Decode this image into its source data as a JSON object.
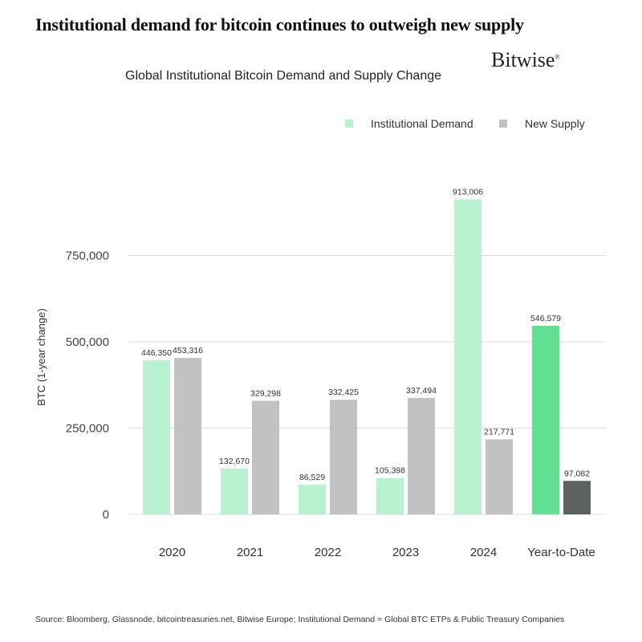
{
  "headline": "Institutional demand for bitcoin continues to outweigh new supply",
  "brand": "Bitwise",
  "brand_mark": "®",
  "source": "Source: Bloomberg, Glassnode, bitcointreasuries.net, Bitwise Europe; Institutional Demand = Global BTC ETPs & Public Treasury Companies",
  "colors": {
    "demand": "#b8f2d0",
    "demand_highlight": "#5fe092",
    "supply": "#c1c2c3",
    "supply_highlight": "#5e6162",
    "grid": "#dcdcdc"
  },
  "chart_data": {
    "type": "bar",
    "title": "Global Institutional Bitcoin Demand and Supply Change",
    "xlabel": "",
    "ylabel": "BTC (1-year change)",
    "ylim": [
      0,
      1000000
    ],
    "yticks": [
      0,
      250000,
      500000,
      750000
    ],
    "ytick_labels": [
      "0",
      "250,000",
      "500,000",
      "750,000"
    ],
    "grid": true,
    "legend_position": "top-right",
    "categories": [
      "2020",
      "2021",
      "2022",
      "2023",
      "2024",
      "Year-to-Date"
    ],
    "series": [
      {
        "name": "Institutional Demand",
        "values": [
          446350,
          132670,
          86529,
          105398,
          913006,
          546579
        ],
        "labels": [
          "446,350",
          "132,670",
          "86,529",
          "105,398",
          "913,006",
          "546,579"
        ]
      },
      {
        "name": "New Supply",
        "values": [
          453316,
          329298,
          332425,
          337494,
          217771,
          97082
        ],
        "labels": [
          "453,316",
          "329,298",
          "332,425",
          "337,494",
          "217,771",
          "97,082"
        ]
      }
    ],
    "highlight_category": "Year-to-Date"
  }
}
